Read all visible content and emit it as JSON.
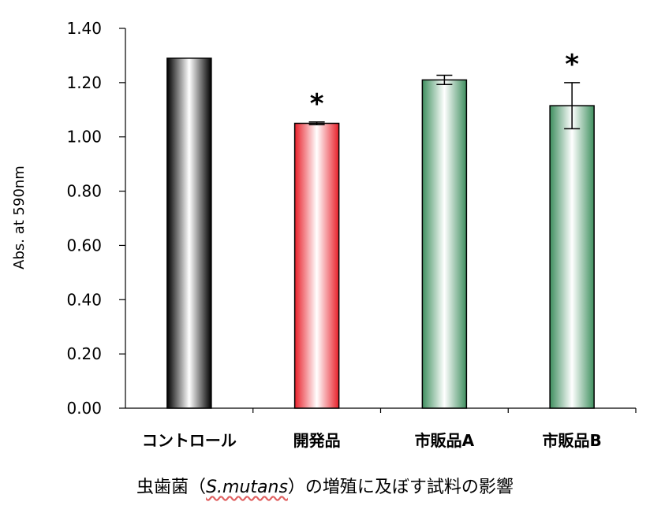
{
  "chart_data": {
    "type": "bar",
    "ylabel": "Abs. at 590nm",
    "ylim": [
      0,
      1.4
    ],
    "yticks": [
      "0.00",
      "0.20",
      "0.40",
      "0.60",
      "0.80",
      "1.00",
      "1.20",
      "1.40"
    ],
    "categories": [
      "コントロール",
      "開発品",
      "市販品A",
      "市販品B"
    ],
    "values": [
      1.29,
      1.05,
      1.21,
      1.115
    ],
    "errors": [
      0,
      0.005,
      0.017,
      0.085
    ],
    "significance": [
      "",
      "*",
      "",
      "*"
    ],
    "bar_colors": [
      "#000000",
      "#e8202a",
      "#3f8f5f",
      "#3f8f5f"
    ],
    "grid": false,
    "legend": "none"
  },
  "caption": {
    "prefix": "虫歯菌（",
    "italic": "S.mutans",
    "suffix": "）の増殖に及ぼす試料の影響"
  }
}
